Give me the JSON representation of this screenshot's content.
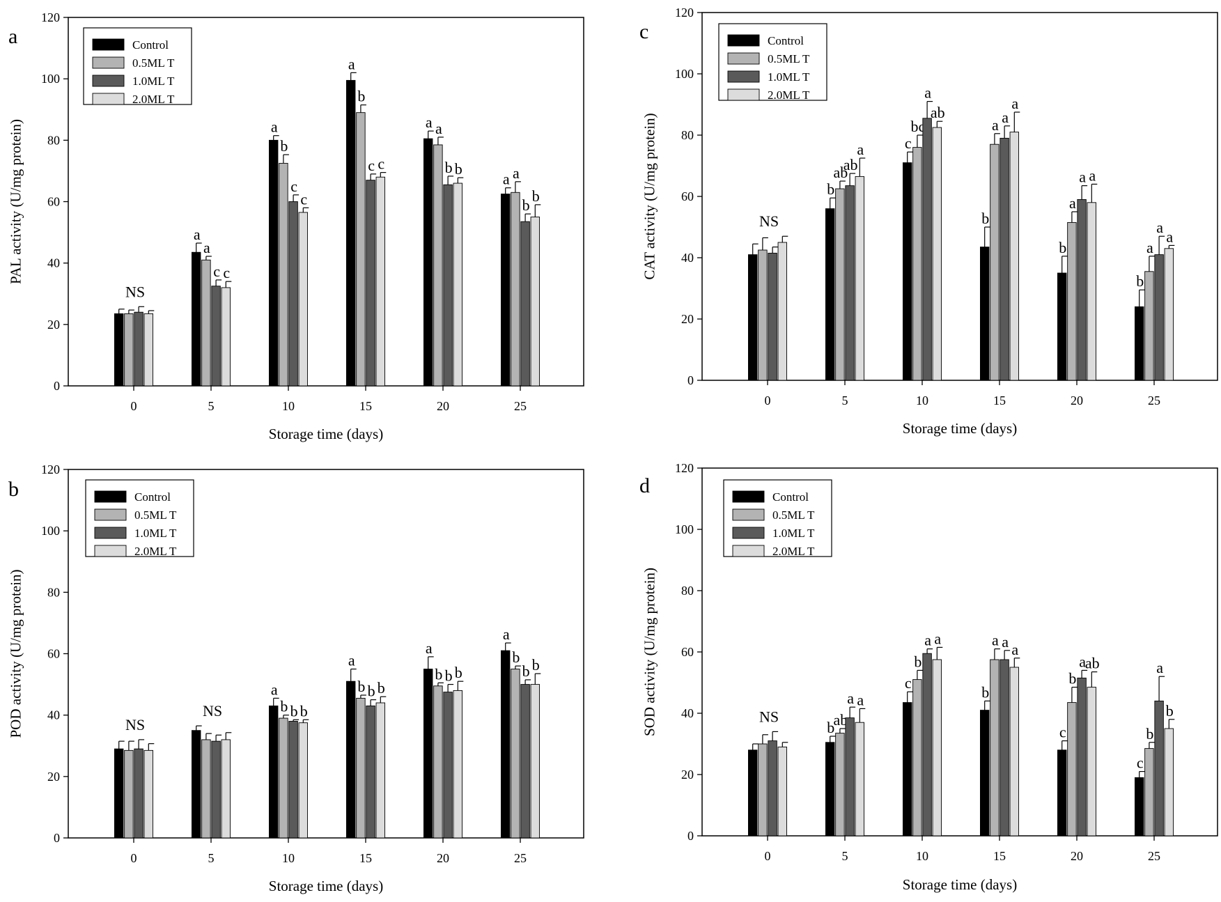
{
  "figure": {
    "series_names": [
      "Control",
      "0.5MLT",
      "1.0MLT",
      "2.0MLT"
    ],
    "series_colors": [
      "#000000",
      "#b3b3b3",
      "#5a5a5a",
      "#dcdcdc"
    ]
  },
  "chart_data": [
    {
      "type": "bar",
      "panel": "a",
      "title": "",
      "xlabel": "Storage time (days)",
      "ylabel": "PAL activity (U/mg  protein)",
      "categories": [
        "0",
        "5",
        "10",
        "15",
        "20",
        "25"
      ],
      "ylim": [
        0,
        120
      ],
      "yticks": [
        "0",
        "20",
        "40",
        "60",
        "80",
        "100",
        "120"
      ],
      "legend": {
        "position": "top-left",
        "entries": [
          "Control",
          "0.5ML T",
          "1.0ML T",
          "2.0ML T"
        ]
      },
      "series": [
        {
          "name": "Control",
          "values": [
            23.5,
            43.5,
            80,
            99.5,
            80.5,
            62.5
          ],
          "errors": [
            1.5,
            3,
            1.5,
            2.5,
            2.5,
            2
          ],
          "labels": [
            "",
            "a",
            "a",
            "a",
            "a",
            "a"
          ]
        },
        {
          "name": "0.5MLT",
          "values": [
            23.5,
            41,
            72.5,
            89,
            78.5,
            63
          ],
          "errors": [
            1.2,
            1.2,
            2.8,
            2.5,
            2.5,
            3.5
          ],
          "labels": [
            "",
            "a",
            "b",
            "b",
            "a",
            "a"
          ]
        },
        {
          "name": "1.0MLT",
          "values": [
            24,
            32.5,
            60,
            67,
            65.5,
            53.5
          ],
          "errors": [
            1.8,
            2,
            2.2,
            2,
            2.8,
            2.5
          ],
          "labels": [
            "",
            "c",
            "c",
            "c",
            "b",
            "b"
          ]
        },
        {
          "name": "2.0MLT",
          "values": [
            23.5,
            32,
            56.5,
            68,
            66,
            55
          ],
          "errors": [
            1,
            2,
            1.5,
            1.5,
            1.8,
            4
          ],
          "labels": [
            "",
            "c",
            "c",
            "c",
            "b",
            "b"
          ]
        }
      ],
      "group_labels": [
        "NS",
        "",
        "",
        "",
        "",
        ""
      ]
    },
    {
      "type": "bar",
      "panel": "b",
      "title": "",
      "xlabel": "Storage time (days)",
      "ylabel": "POD activity (U/mg  protein)",
      "categories": [
        "0",
        "5",
        "10",
        "15",
        "20",
        "25"
      ],
      "ylim": [
        0,
        120
      ],
      "yticks": [
        "0",
        "20",
        "40",
        "60",
        "80",
        "100",
        "120"
      ],
      "legend": {
        "position": "top-left",
        "entries": [
          "Control",
          "0.5ML T",
          "1.0ML T",
          "2.0ML T"
        ]
      },
      "series": [
        {
          "name": "Control",
          "values": [
            29,
            35,
            43,
            51,
            55,
            61
          ],
          "errors": [
            2.5,
            1.5,
            2.5,
            4,
            4,
            2.5
          ],
          "labels": [
            "",
            "",
            "a",
            "a",
            "a",
            "a"
          ]
        },
        {
          "name": "0.5MLT",
          "values": [
            28.5,
            32,
            39,
            45.5,
            49.5,
            55
          ],
          "errors": [
            3,
            2,
            1,
            1,
            1,
            1
          ],
          "labels": [
            "",
            "",
            "b",
            "b",
            "b",
            "b"
          ]
        },
        {
          "name": "1.0MLT",
          "values": [
            29,
            31.5,
            38,
            43,
            47.5,
            50
          ],
          "errors": [
            3,
            2,
            0.5,
            2,
            2.5,
            1.5
          ],
          "labels": [
            "",
            "",
            "b",
            "b",
            "b",
            "b"
          ]
        },
        {
          "name": "2.0MLT",
          "values": [
            28.5,
            32,
            37.5,
            44,
            48,
            50
          ],
          "errors": [
            2.2,
            2.3,
            1,
            2,
            3,
            3.5
          ],
          "labels": [
            "",
            "",
            "b",
            "b",
            "b",
            "b"
          ]
        }
      ],
      "group_labels": [
        "NS",
        "NS",
        "",
        "",
        "",
        ""
      ]
    },
    {
      "type": "bar",
      "panel": "c",
      "title": "",
      "xlabel": "Storage time (days)",
      "ylabel": "CAT activity (U/mg  protein)",
      "categories": [
        "0",
        "5",
        "10",
        "15",
        "20",
        "25"
      ],
      "ylim": [
        0,
        120
      ],
      "yticks": [
        "0",
        "20",
        "40",
        "60",
        "80",
        "100",
        "120"
      ],
      "legend": {
        "position": "top-left",
        "entries": [
          "Control",
          "0.5ML T",
          "1.0ML T",
          "2.0ML T"
        ]
      },
      "series": [
        {
          "name": "Control",
          "values": [
            41,
            56,
            71,
            43.5,
            35,
            24
          ],
          "errors": [
            3.5,
            3.5,
            3.5,
            6.5,
            5.5,
            5.5
          ],
          "labels": [
            "",
            "b",
            "c",
            "b",
            "b",
            "b"
          ]
        },
        {
          "name": "0.5MLT",
          "values": [
            42.5,
            62.5,
            76,
            77,
            51.5,
            35.5
          ],
          "errors": [
            4,
            2.5,
            4,
            3.5,
            3.5,
            5
          ],
          "labels": [
            "",
            "ab",
            "bc",
            "a",
            "a",
            "a"
          ]
        },
        {
          "name": "1.0MLT",
          "values": [
            41.5,
            63.5,
            85.5,
            79,
            59,
            41
          ],
          "errors": [
            2,
            4,
            5.5,
            4,
            4.5,
            6
          ],
          "labels": [
            "",
            "ab",
            "a",
            "a",
            "a",
            "a"
          ]
        },
        {
          "name": "2.0MLT",
          "values": [
            45,
            66.5,
            82.5,
            81,
            58,
            43
          ],
          "errors": [
            2,
            6,
            2,
            6.5,
            6,
            1
          ],
          "labels": [
            "",
            "a",
            "ab",
            "a",
            "a",
            "a"
          ]
        }
      ],
      "group_labels": [
        "NS",
        "",
        "",
        "",
        "",
        ""
      ]
    },
    {
      "type": "bar",
      "panel": "d",
      "title": "",
      "xlabel": "Storage time (days)",
      "ylabel": "SOD activity (U/mg  protein)",
      "categories": [
        "0",
        "5",
        "10",
        "15",
        "20",
        "25"
      ],
      "ylim": [
        0,
        120
      ],
      "yticks": [
        "0",
        "20",
        "40",
        "60",
        "80",
        "100",
        "120"
      ],
      "legend": {
        "position": "top-left",
        "entries": [
          "Control",
          "0.5ML T",
          "1.0ML T",
          "2.0ML T"
        ]
      },
      "series": [
        {
          "name": "Control",
          "values": [
            28,
            30.5,
            43.5,
            41,
            28,
            19
          ],
          "errors": [
            2,
            2,
            3.5,
            3,
            3,
            2
          ],
          "labels": [
            "",
            "b",
            "c",
            "b",
            "c",
            "c"
          ]
        },
        {
          "name": "0.5MLT",
          "values": [
            30,
            33.5,
            51,
            57.5,
            43.5,
            28.5
          ],
          "errors": [
            3,
            1.5,
            3,
            3.5,
            5,
            2
          ],
          "labels": [
            "",
            "ab",
            "b",
            "a",
            "b",
            "b"
          ]
        },
        {
          "name": "1.0MLT",
          "values": [
            31,
            38.5,
            59.5,
            57.5,
            51.5,
            44
          ],
          "errors": [
            3,
            3.5,
            1.5,
            3,
            2.5,
            8
          ],
          "labels": [
            "",
            "a",
            "a",
            "a",
            "a",
            "a"
          ]
        },
        {
          "name": "2.0MLT",
          "values": [
            29,
            37,
            57.5,
            55,
            48.5,
            35
          ],
          "errors": [
            1.5,
            4.5,
            4,
            3,
            5,
            3
          ],
          "labels": [
            "",
            "a",
            "a",
            "a",
            "ab",
            "b"
          ]
        }
      ],
      "group_labels": [
        "NS",
        "",
        "",
        "",
        "",
        ""
      ]
    }
  ]
}
